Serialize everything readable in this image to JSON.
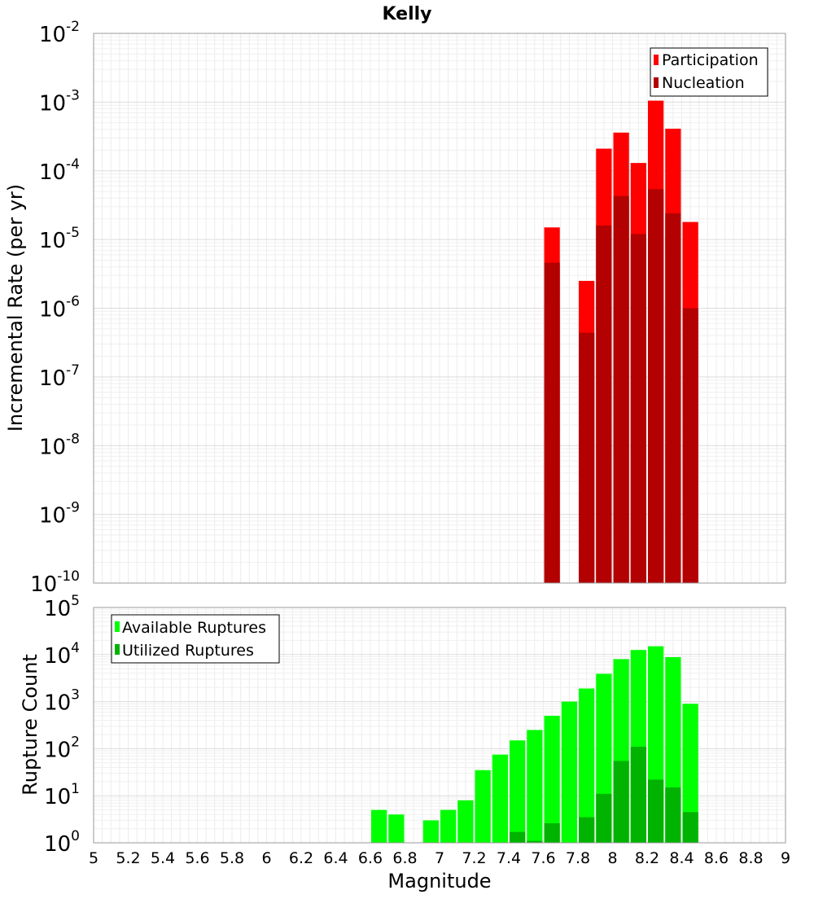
{
  "chart_data": [
    {
      "type": "bar",
      "title": "Kelly",
      "ylabel": "Incremental Rate (per yr)",
      "xlabel": "",
      "scale": "log",
      "xlim": [
        5,
        9
      ],
      "ylim_exponents": [
        -10,
        -2
      ],
      "bin_width": 0.1,
      "legend_position": "top-right",
      "ytick_labels": [
        {
          "base": "10",
          "exp": "-2"
        },
        {
          "base": "10",
          "exp": "-3"
        },
        {
          "base": "10",
          "exp": "-4"
        },
        {
          "base": "10",
          "exp": "-5"
        },
        {
          "base": "10",
          "exp": "-6"
        },
        {
          "base": "10",
          "exp": "-7"
        },
        {
          "base": "10",
          "exp": "-8"
        },
        {
          "base": "10",
          "exp": "-9"
        },
        {
          "base": "10",
          "exp": "-10"
        }
      ],
      "series": [
        {
          "name": "Participation",
          "color": "#ff0000",
          "x": [
            7.65,
            7.85,
            7.95,
            8.05,
            8.15,
            8.25,
            8.35,
            8.45
          ],
          "values": [
            1.5e-05,
            2.5e-06,
            0.00021,
            0.00036,
            0.00013,
            0.00105,
            0.00041,
            1.8e-05
          ]
        },
        {
          "name": "Nucleation",
          "color": "#b30000",
          "x": [
            7.65,
            7.85,
            7.95,
            8.05,
            8.15,
            8.25,
            8.35,
            8.45
          ],
          "values": [
            4.6e-06,
            4.4e-07,
            1.6e-05,
            4.3e-05,
            1.2e-05,
            5.4e-05,
            2.4e-05,
            1e-06
          ]
        }
      ]
    },
    {
      "type": "bar",
      "title": "",
      "ylabel": "Rupture Count",
      "xlabel": "Magnitude",
      "scale": "log",
      "xlim": [
        5,
        9
      ],
      "ylim_exponents": [
        0,
        5
      ],
      "bin_width": 0.1,
      "legend_position": "top-left",
      "ytick_labels": [
        {
          "base": "10",
          "exp": "5"
        },
        {
          "base": "10",
          "exp": "4"
        },
        {
          "base": "10",
          "exp": "3"
        },
        {
          "base": "10",
          "exp": "2"
        },
        {
          "base": "10",
          "exp": "1"
        },
        {
          "base": "10",
          "exp": "0"
        }
      ],
      "xtick_labels": [
        "5",
        "5.2",
        "5.4",
        "5.6",
        "5.8",
        "6",
        "6.2",
        "6.4",
        "6.6",
        "6.8",
        "7",
        "7.2",
        "7.4",
        "7.6",
        "7.8",
        "8",
        "8.2",
        "8.4",
        "8.6",
        "8.8",
        "9"
      ],
      "series": [
        {
          "name": "Available Ruptures",
          "color": "#00ff00",
          "x": [
            6.65,
            6.75,
            6.95,
            7.05,
            7.15,
            7.25,
            7.35,
            7.45,
            7.55,
            7.65,
            7.75,
            7.85,
            7.95,
            8.05,
            8.15,
            8.25,
            8.35,
            8.45
          ],
          "values": [
            5,
            4,
            3,
            5,
            8,
            35,
            75,
            150,
            250,
            500,
            1000,
            1900,
            3900,
            8000,
            12500,
            15000,
            8800,
            900
          ]
        },
        {
          "name": "Utilized Ruptures",
          "color": "#00b300",
          "x": [
            7.45,
            7.55,
            7.65,
            7.85,
            7.95,
            8.05,
            8.15,
            8.25,
            8.35,
            8.45
          ],
          "values": [
            1.7,
            1.1,
            2.6,
            3.5,
            11,
            55,
            110,
            22,
            15,
            4.5
          ]
        }
      ]
    }
  ]
}
